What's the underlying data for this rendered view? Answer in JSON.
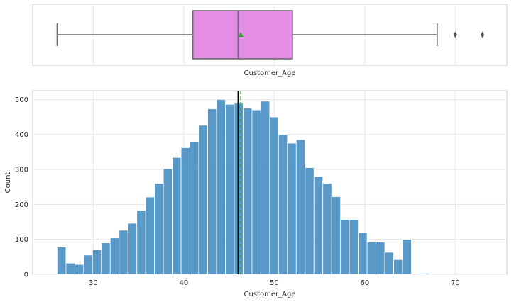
{
  "chart_data": [
    {
      "type": "box",
      "xlabel": "Customer_Age",
      "xlim": [
        23.3,
        75.7
      ],
      "xticks": [
        30,
        40,
        50,
        60,
        70
      ],
      "stats": {
        "whisker_low": 26,
        "q1": 41,
        "median": 46,
        "q3": 52,
        "whisker_high": 68,
        "mean": 46.3
      },
      "outliers": [
        70,
        73
      ],
      "grid": true,
      "box_color": "#e38de6"
    },
    {
      "type": "histogram",
      "xlabel": "Customer_Age",
      "ylabel": "Count",
      "xlim": [
        23.3,
        75.7
      ],
      "ylim": [
        0,
        525
      ],
      "xticks": [
        30,
        40,
        50,
        60,
        70
      ],
      "xtick_labels": [
        "30",
        "40",
        "50",
        "60",
        "70"
      ],
      "yticks": [
        0,
        100,
        200,
        300,
        400,
        500
      ],
      "ytick_labels": [
        "0",
        "100",
        "200",
        "300",
        "400",
        "500"
      ],
      "bin_start": 26,
      "bin_width": 0.9787,
      "counts": [
        78,
        32,
        28,
        55,
        70,
        90,
        104,
        126,
        146,
        183,
        221,
        260,
        302,
        334,
        362,
        380,
        426,
        473,
        500,
        486,
        491,
        475,
        470,
        495,
        450,
        400,
        375,
        385,
        305,
        280,
        260,
        222,
        157,
        157,
        120,
        92,
        92,
        63,
        42,
        100,
        0,
        3,
        0,
        0,
        0,
        0,
        0,
        0
      ],
      "mean_line": 46.3,
      "median_line": 46,
      "grid": true,
      "bar_color": "#4a90c2"
    }
  ]
}
